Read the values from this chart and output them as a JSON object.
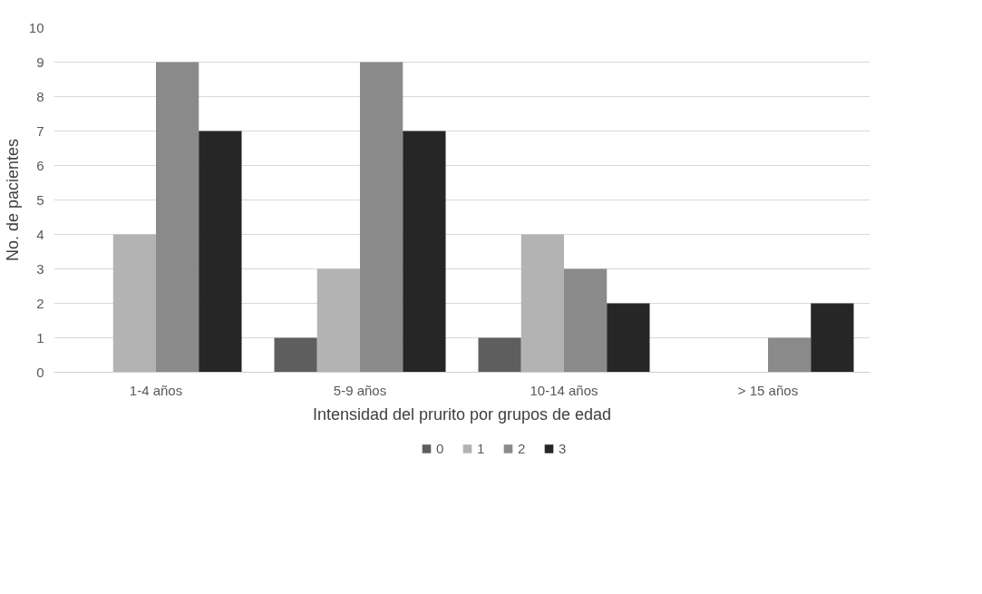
{
  "chart_data": {
    "type": "bar",
    "xlabel": "Intensidad del prurito por grupos de edad",
    "ylabel": "No. de pacientes",
    "categories": [
      "1-4 años",
      "5-9 años",
      "10-14 años",
      "> 15 años"
    ],
    "series": [
      {
        "name": "0",
        "color": "#5e5e5e",
        "values": [
          0,
          1,
          1,
          0
        ]
      },
      {
        "name": "1",
        "color": "#b3b3b3",
        "values": [
          4,
          3,
          4,
          0
        ]
      },
      {
        "name": "2",
        "color": "#8a8a8a",
        "values": [
          9,
          9,
          3,
          1
        ]
      },
      {
        "name": "3",
        "color": "#262626",
        "values": [
          7,
          7,
          2,
          2
        ]
      }
    ],
    "ylim": [
      0,
      10
    ],
    "yticks": [
      0,
      1,
      2,
      3,
      4,
      5,
      6,
      7,
      8,
      9,
      10
    ],
    "grid": "y",
    "legend": "bottom"
  }
}
